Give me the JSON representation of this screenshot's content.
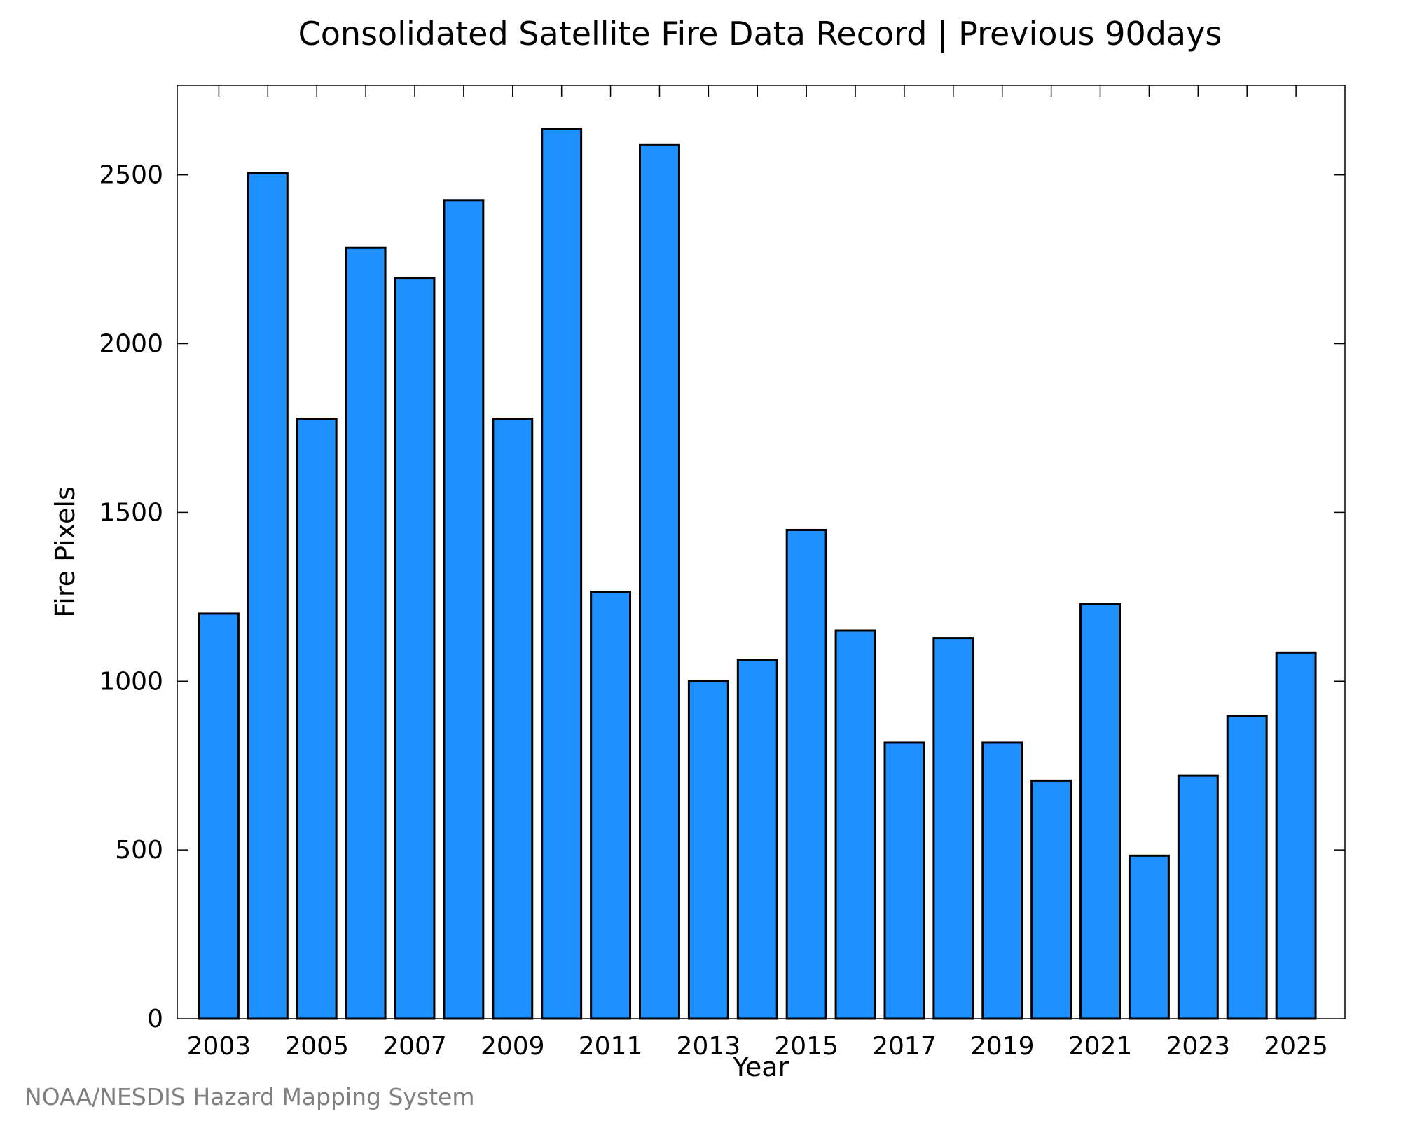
{
  "source_note": "NOAA/NESDIS Hazard Mapping System",
  "colors": {
    "bar_fill": "#1e90ff",
    "bar_stroke": "#000000",
    "source_text": "#808080"
  },
  "chart_data": {
    "type": "bar",
    "title": "Consolidated Satellite Fire Data Record | Previous 90days",
    "xlabel": "Year",
    "ylabel": "Fire Pixels",
    "categories": [
      "2003",
      "2004",
      "2005",
      "2006",
      "2007",
      "2008",
      "2009",
      "2010",
      "2011",
      "2012",
      "2013",
      "2014",
      "2015",
      "2016",
      "2017",
      "2018",
      "2019",
      "2020",
      "2021",
      "2022",
      "2023",
      "2024",
      "2025"
    ],
    "values": [
      1200,
      2505,
      1778,
      2285,
      2195,
      2425,
      1778,
      2637,
      1265,
      2590,
      1000,
      1063,
      1448,
      1150,
      818,
      1128,
      818,
      705,
      1228,
      483,
      720,
      897,
      1085
    ],
    "x_tick_labels": [
      "2003",
      "2005",
      "2007",
      "2009",
      "2011",
      "2013",
      "2015",
      "2017",
      "2019",
      "2021",
      "2023",
      "2025"
    ],
    "y_ticks": [
      0,
      500,
      1000,
      1500,
      2000,
      2500
    ],
    "ylim": [
      0,
      2765
    ],
    "xlim": [
      2002.15,
      2026.0
    ],
    "grid": false,
    "legend": "none"
  }
}
